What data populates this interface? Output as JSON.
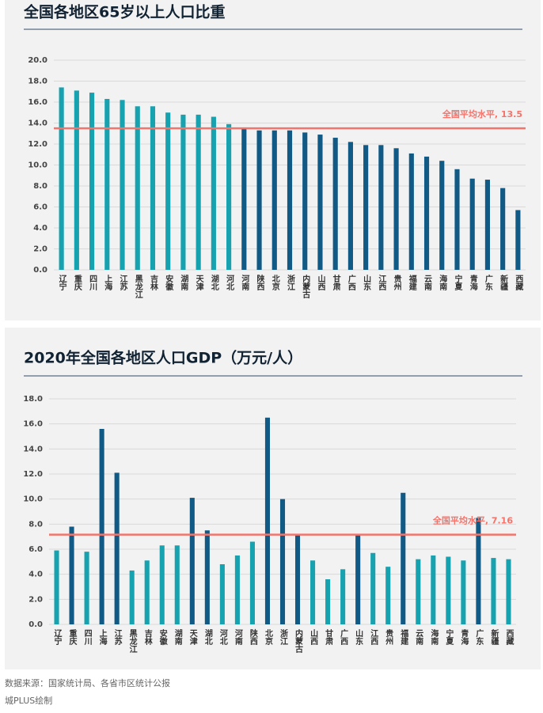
{
  "chart_data": [
    {
      "type": "bar",
      "title": "全国各地区65岁以上人口比重",
      "categories": [
        "辽宁",
        "重庆",
        "四川",
        "上海",
        "江苏",
        "黑龙江",
        "吉林",
        "安徽",
        "湖南",
        "天津",
        "湖北",
        "河北",
        "河南",
        "陕西",
        "北京",
        "浙江",
        "内蒙古",
        "山西",
        "甘肃",
        "广西",
        "山东",
        "江西",
        "贵州",
        "福建",
        "云南",
        "海南",
        "宁夏",
        "青海",
        "广东",
        "新疆",
        "西藏"
      ],
      "values": [
        17.4,
        17.1,
        16.9,
        16.3,
        16.2,
        15.6,
        15.6,
        15.0,
        14.8,
        14.8,
        14.6,
        13.9,
        13.5,
        13.3,
        13.3,
        13.3,
        13.1,
        12.9,
        12.6,
        12.2,
        11.9,
        11.9,
        11.6,
        11.1,
        10.8,
        10.4,
        9.6,
        8.7,
        8.6,
        7.8,
        5.7
      ],
      "colors": [
        "#17a2b0",
        "#17a2b0",
        "#17a2b0",
        "#17a2b0",
        "#17a2b0",
        "#17a2b0",
        "#17a2b0",
        "#17a2b0",
        "#17a2b0",
        "#17a2b0",
        "#17a2b0",
        "#17a2b0",
        "#105a85",
        "#105a85",
        "#105a85",
        "#105a85",
        "#105a85",
        "#105a85",
        "#105a85",
        "#105a85",
        "#105a85",
        "#105a85",
        "#105a85",
        "#105a85",
        "#105a85",
        "#105a85",
        "#105a85",
        "#105a85",
        "#105a85",
        "#105a85",
        "#105a85"
      ],
      "ylim": [
        0,
        20
      ],
      "yticks": [
        {
          "value": 0,
          "label": "0.0"
        },
        {
          "value": 2,
          "label": "2.0"
        },
        {
          "value": 4,
          "label": "4.0"
        },
        {
          "value": 6,
          "label": "6.0"
        },
        {
          "value": 8,
          "label": "8.0"
        },
        {
          "value": 10,
          "label": "10.0"
        },
        {
          "value": 12,
          "label": "12.0"
        },
        {
          "value": 14,
          "label": "14.0"
        },
        {
          "value": 16,
          "label": "16.0"
        },
        {
          "value": 18,
          "label": "18.0"
        },
        {
          "value": 20,
          "label": "20.0"
        }
      ],
      "grid": true,
      "reference": {
        "value": 13.5,
        "label": "全国平均水平, 13.5",
        "color": "#f4736b"
      }
    },
    {
      "type": "bar",
      "title": "2020年全国各地区人口GDP（万元/人）",
      "categories": [
        "辽宁",
        "重庆",
        "四川",
        "上海",
        "江苏",
        "黑龙江",
        "吉林",
        "安徽",
        "湖南",
        "天津",
        "湖北",
        "河北",
        "河南",
        "陕西",
        "北京",
        "浙江",
        "内蒙古",
        "山西",
        "甘肃",
        "广西",
        "山东",
        "江西",
        "贵州",
        "福建",
        "云南",
        "海南",
        "宁夏",
        "青海",
        "广东",
        "新疆",
        "西藏"
      ],
      "values": [
        5.9,
        7.8,
        5.8,
        15.6,
        12.1,
        4.3,
        5.1,
        6.3,
        6.3,
        10.1,
        7.5,
        4.8,
        5.5,
        6.6,
        16.5,
        10.0,
        7.2,
        5.1,
        3.6,
        4.4,
        7.2,
        5.7,
        4.6,
        10.5,
        5.2,
        5.5,
        5.4,
        5.1,
        8.5,
        5.3,
        5.2
      ],
      "colors": [
        "#17a2b0",
        "#105a85",
        "#17a2b0",
        "#105a85",
        "#105a85",
        "#17a2b0",
        "#17a2b0",
        "#17a2b0",
        "#17a2b0",
        "#105a85",
        "#105a85",
        "#17a2b0",
        "#17a2b0",
        "#17a2b0",
        "#105a85",
        "#105a85",
        "#105a85",
        "#17a2b0",
        "#17a2b0",
        "#17a2b0",
        "#105a85",
        "#17a2b0",
        "#17a2b0",
        "#105a85",
        "#17a2b0",
        "#17a2b0",
        "#17a2b0",
        "#17a2b0",
        "#105a85",
        "#17a2b0",
        "#17a2b0"
      ],
      "ylim": [
        0,
        18
      ],
      "yticks": [
        {
          "value": 0,
          "label": "0.0"
        },
        {
          "value": 2,
          "label": "2.0"
        },
        {
          "value": 4,
          "label": "4.0"
        },
        {
          "value": 6,
          "label": "6.0"
        },
        {
          "value": 8,
          "label": "8.0"
        },
        {
          "value": 10,
          "label": "10.0"
        },
        {
          "value": 12,
          "label": "12.0"
        },
        {
          "value": 14,
          "label": "14.0"
        },
        {
          "value": 16,
          "label": "16.0"
        },
        {
          "value": 18,
          "label": "18.0"
        }
      ],
      "grid": true,
      "reference": {
        "value": 7.16,
        "label": "全国平均水平, 7.16",
        "color": "#f4736b"
      }
    }
  ],
  "footer": {
    "source": "数据来源：国家统计局、各省市区统计公报",
    "credit": "城PLUS绘制"
  }
}
